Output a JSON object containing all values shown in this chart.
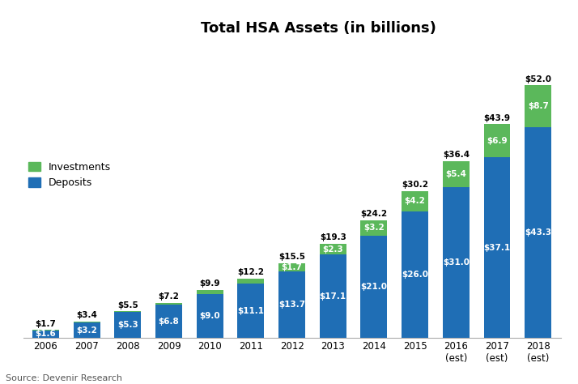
{
  "title": "Total HSA Assets (in billions)",
  "categories": [
    "2006",
    "2007",
    "2008",
    "2009",
    "2010",
    "2011",
    "2012",
    "2013",
    "2014",
    "2015",
    "2016\n(est)",
    "2017\n(est)",
    "2018\n(est)"
  ],
  "deposits": [
    1.6,
    3.2,
    5.3,
    6.8,
    9.0,
    11.1,
    13.7,
    17.1,
    21.0,
    26.0,
    31.0,
    37.1,
    43.3
  ],
  "investments": [
    0.1,
    0.2,
    0.2,
    0.4,
    0.9,
    1.1,
    1.7,
    2.3,
    3.2,
    4.2,
    5.4,
    6.9,
    8.7
  ],
  "totals": [
    "$1.7",
    "$3.4",
    "$5.5",
    "$7.2",
    "$9.9",
    "$12.2",
    "$15.5",
    "$19.3",
    "$24.2",
    "$30.2",
    "$36.4",
    "$43.9",
    "$52.0"
  ],
  "deposit_labels": [
    "$1.6",
    "$3.2",
    "$5.3",
    "$6.8",
    "$9.0",
    "$11.1",
    "$13.7",
    "$17.1",
    "$21.0",
    "$26.0",
    "$31.0",
    "$37.1",
    "$43.3"
  ],
  "investment_labels": [
    "",
    "",
    "",
    "",
    "",
    "",
    "$1.7",
    "$2.3",
    "$3.2",
    "$4.2",
    "$5.4",
    "$6.9",
    "$8.7"
  ],
  "deposit_color": "#1F6EB5",
  "investment_color": "#5BB85B",
  "background_color": "#ffffff",
  "source_text": "Source: Devenir Research",
  "ylim": [
    0,
    60
  ],
  "bar_width": 0.65,
  "title_fontsize": 13,
  "label_fontsize": 7.5,
  "tick_fontsize": 8.5,
  "legend_fontsize": 9
}
